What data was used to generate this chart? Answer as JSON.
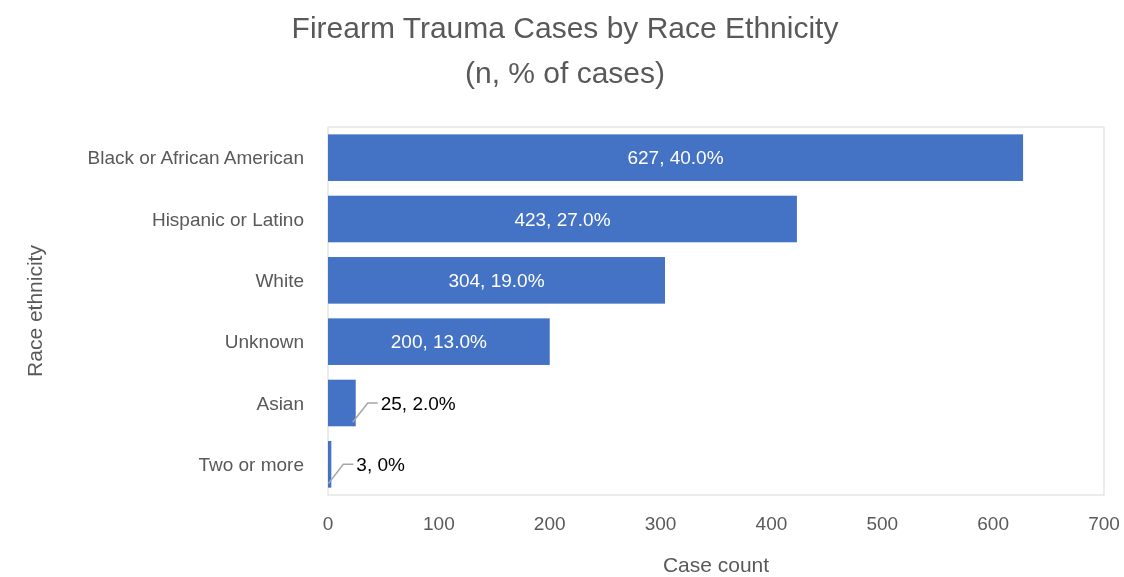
{
  "chart_data": {
    "type": "bar",
    "orientation": "horizontal",
    "title": "Firearm Trauma Cases by Race Ethnicity",
    "subtitle": "(n, % of cases)",
    "xlabel": "Case count",
    "ylabel": "Race ethnicity",
    "categories": [
      "Black or African American",
      "Hispanic or Latino",
      "White",
      "Unknown",
      "Asian",
      "Two or more"
    ],
    "values": [
      627,
      423,
      304,
      200,
      25,
      3
    ],
    "value_labels": [
      "627, 40.0%",
      "423, 27.0%",
      "304, 19.0%",
      "200, 13.0%",
      "25, 2.0%",
      "3, 0%"
    ],
    "color": "#4472c4",
    "xlim": [
      0,
      700
    ],
    "xticks": [
      0,
      100,
      200,
      300,
      400,
      500,
      600,
      700
    ],
    "grid": false
  }
}
